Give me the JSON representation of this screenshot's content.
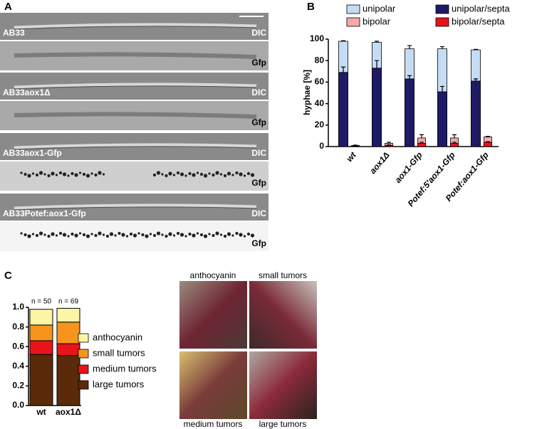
{
  "panel_labels": [
    "A",
    "B",
    "C"
  ],
  "strains": [
    {
      "name": "AB33",
      "channels": [
        "DIC",
        "Gfp"
      ]
    },
    {
      "name": "AB33aox1Δ",
      "channels": [
        "DIC",
        "Gfp"
      ]
    },
    {
      "name": "AB33aox1-Gfp",
      "channels": [
        "DIC",
        "Gfp"
      ]
    },
    {
      "name": "AB33Potef:aox1-Gfp",
      "channels": [
        "DIC",
        "Gfp"
      ]
    }
  ],
  "chart_data": [
    {
      "type": "bar",
      "stacked": false,
      "y_label": "hyphae [%]",
      "categories": [
        "wt",
        "aox1Δ",
        "aox1-Gfp",
        "Potef:5'aox1-Gfp",
        "Potef:aox1-Gfp"
      ],
      "ylim": [
        0,
        100
      ],
      "yticks": [
        0,
        20,
        40,
        60,
        80,
        100
      ],
      "series": [
        {
          "name": "unipolar",
          "color": "#c5dcf5",
          "values": [
            98,
            97,
            91,
            91,
            90
          ],
          "errors": [
            0.5,
            1,
            3,
            2,
            0.5
          ]
        },
        {
          "name": "unipolar/septa",
          "color": "#1f1a66",
          "values": [
            69,
            73,
            63,
            51,
            61
          ],
          "errors": [
            5,
            7,
            3,
            5,
            2
          ]
        },
        {
          "name": "bipolar",
          "color": "#f4a9a9",
          "values": [
            1,
            3,
            8,
            8,
            9
          ],
          "errors": [
            0.3,
            1,
            3,
            3,
            0.5
          ]
        },
        {
          "name": "bipolar/septa",
          "color": "#e3141a",
          "values": [
            0.5,
            1,
            3,
            3,
            4
          ],
          "errors": [
            0.2,
            0.5,
            1,
            1,
            0.5
          ]
        }
      ]
    },
    {
      "type": "bar",
      "stacked": true,
      "categories": [
        "wt",
        "aox1Δ"
      ],
      "annotations": [
        "n = 50",
        "n = 69"
      ],
      "ylim": [
        0,
        1
      ],
      "yticks": [
        {
          "value": 0,
          "label": "0.0"
        },
        0.2,
        0.4,
        0.6,
        0.8,
        {
          "value": 1,
          "label": "1.0"
        }
      ],
      "series": [
        {
          "name": "large tumors",
          "color": "#5a2a0a",
          "values": [
            0.52,
            0.51
          ]
        },
        {
          "name": "medium tumors",
          "color": "#e8141a",
          "values": [
            0.14,
            0.12
          ]
        },
        {
          "name": "small tumors",
          "color": "#f7941d",
          "values": [
            0.16,
            0.22
          ]
        },
        {
          "name": "anthocyanin",
          "color": "#fdf5a6",
          "values": [
            0.16,
            0.14
          ]
        }
      ]
    }
  ],
  "photos": [
    {
      "label": "anthocyanin"
    },
    {
      "label": "small tumors"
    },
    {
      "label": "medium tumors"
    },
    {
      "label": "large tumors"
    }
  ]
}
